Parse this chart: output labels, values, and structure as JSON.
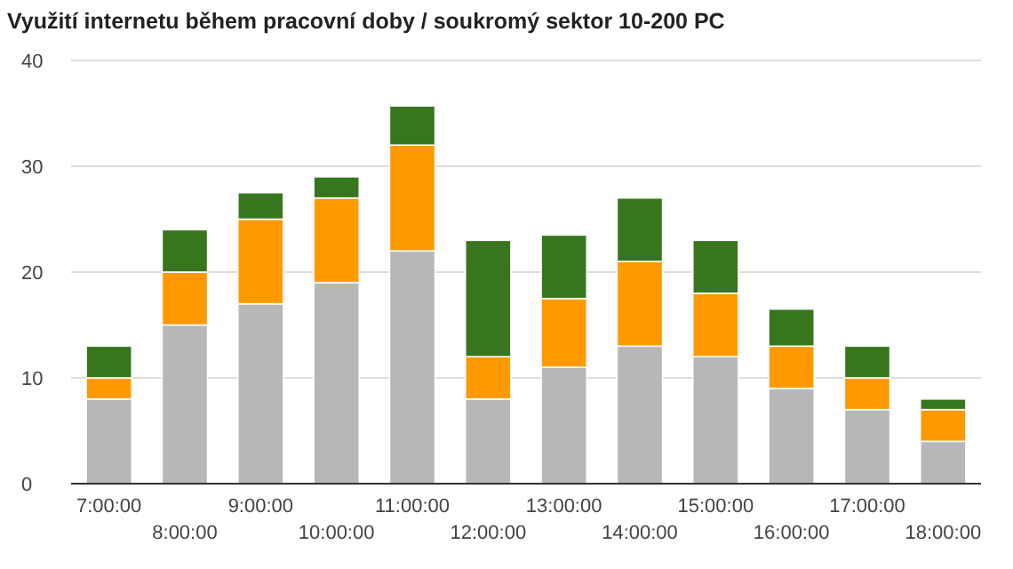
{
  "chart_data": {
    "type": "bar",
    "title": "Využití internetu během pracovní doby / soukromý sektor 10-200 PC",
    "stacked": true,
    "grid": "y",
    "categories": [
      "7:00:00",
      "8:00:00",
      "9:00:00",
      "10:00:00",
      "11:00:00",
      "12:00:00",
      "13:00:00",
      "14:00:00",
      "15:00:00",
      "16:00:00",
      "17:00:00",
      "18:00:00"
    ],
    "series": [
      {
        "color": "#b7b7b7",
        "values": [
          8,
          15,
          17,
          19,
          22,
          8,
          11,
          13,
          12,
          9,
          7,
          4
        ]
      },
      {
        "color": "#ff9900",
        "values": [
          2,
          5,
          8,
          8,
          10,
          4,
          6.5,
          8,
          6,
          4,
          3,
          3
        ]
      },
      {
        "color": "#38761d",
        "values": [
          3,
          4,
          2.5,
          2,
          3.7,
          11,
          6,
          6,
          5,
          3.5,
          3,
          1
        ]
      }
    ],
    "ylim": [
      0,
      40
    ],
    "yticks": [
      0,
      10,
      20,
      30,
      40
    ]
  }
}
